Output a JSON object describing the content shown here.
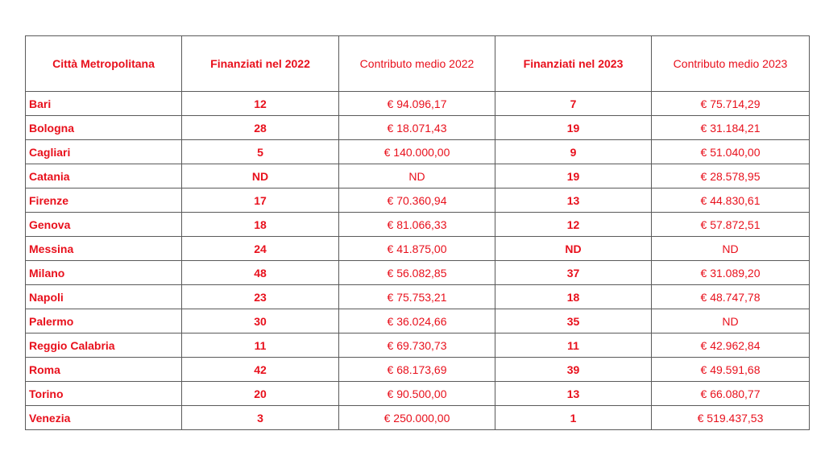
{
  "table": {
    "headers": [
      "Città Metropolitana",
      "Finanziati nel 2022",
      "Contributo medio 2022",
      "Finanziati nel 2023",
      "Contributo medio 2023"
    ],
    "rows": [
      [
        "Bari",
        "12",
        "€ 94.096,17",
        "7",
        "€ 75.714,29"
      ],
      [
        "Bologna",
        "28",
        "€ 18.071,43",
        "19",
        "€ 31.184,21"
      ],
      [
        "Cagliari",
        "5",
        "€ 140.000,00",
        "9",
        "€ 51.040,00"
      ],
      [
        "Catania",
        "ND",
        "ND",
        "19",
        "€ 28.578,95"
      ],
      [
        "Firenze",
        "17",
        "€ 70.360,94",
        "13",
        "€ 44.830,61"
      ],
      [
        "Genova",
        "18",
        "€ 81.066,33",
        "12",
        "€ 57.872,51"
      ],
      [
        "Messina",
        "24",
        "€ 41.875,00",
        "ND",
        "ND"
      ],
      [
        "Milano",
        "48",
        "€ 56.082,85",
        "37",
        "€ 31.089,20"
      ],
      [
        "Napoli",
        "23",
        "€ 75.753,21",
        "18",
        "€ 48.747,78"
      ],
      [
        "Palermo",
        "30",
        "€ 36.024,66",
        "35",
        "ND"
      ],
      [
        "Reggio Calabria",
        "11",
        "€ 69.730,73",
        "11",
        "€ 42.962,84"
      ],
      [
        "Roma",
        "42",
        "€ 68.173,69",
        "39",
        "€ 49.591,68"
      ],
      [
        "Torino",
        "20",
        "€ 90.500,00",
        "13",
        "€ 66.080,77"
      ],
      [
        "Venezia",
        "3",
        "€ 250.000,00",
        "1",
        "€ 519.437,53"
      ]
    ]
  },
  "colors": {
    "text": "#e8101c",
    "border": "#5a5a5a",
    "background": "#ffffff"
  }
}
